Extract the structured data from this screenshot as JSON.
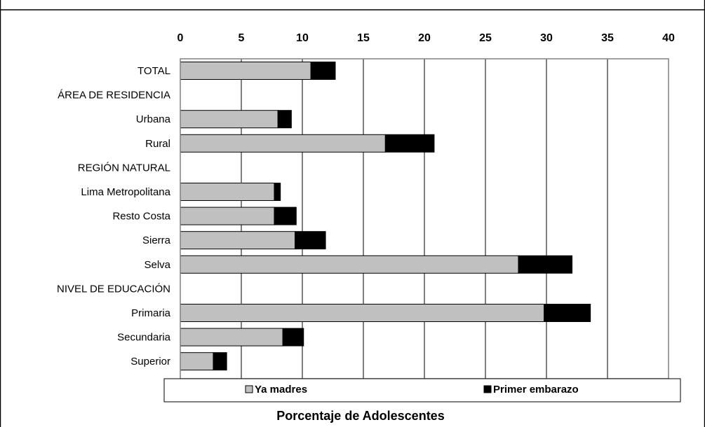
{
  "chart_data": {
    "type": "bar",
    "orientation": "horizontal",
    "stacked": true,
    "xlabel": "Porcentaje de Adolescentes",
    "xlim": [
      0,
      40
    ],
    "xticks": [
      "0",
      "5",
      "10",
      "15",
      "20",
      "25",
      "30",
      "35",
      "40"
    ],
    "grid": true,
    "legend_position": "bottom",
    "categories": [
      "TOTAL",
      "ÁREA DE RESIDENCIA",
      "Urbana",
      "Rural",
      "REGIÓN NATURAL",
      "Lima Metropolitana",
      "Resto Costa",
      "Sierra",
      "Selva",
      "NIVEL  DE EDUCACIÓN",
      "Primaria",
      "Secundaria",
      "Superior"
    ],
    "series": [
      {
        "name": "Ya madres",
        "color": "#c0c0c0",
        "values": [
          10.7,
          null,
          8.0,
          16.8,
          null,
          7.7,
          7.7,
          9.4,
          27.7,
          null,
          29.8,
          8.4,
          2.7
        ]
      },
      {
        "name": "Primer embarazo",
        "color": "#000000",
        "values": [
          2.0,
          null,
          1.1,
          4.0,
          null,
          0.5,
          1.8,
          2.5,
          4.4,
          null,
          3.8,
          1.7,
          1.1
        ]
      }
    ]
  }
}
